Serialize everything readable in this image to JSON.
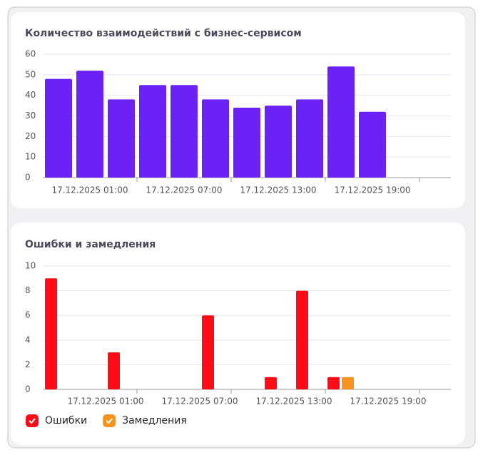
{
  "chart_data": [
    {
      "type": "bar",
      "title": "Количество взаимодействий с бизнес-сервисом",
      "categories": [
        null,
        "17.12.2025 01:00",
        null,
        null,
        "17.12.2025 07:00",
        null,
        null,
        "17.12.2025 13:00",
        null,
        null,
        "17.12.2025 19:00",
        null,
        null
      ],
      "series": [
        {
          "name": null,
          "color": "#6a22f5",
          "values": [
            48,
            52,
            38,
            45,
            45,
            38,
            34,
            35,
            38,
            54,
            32,
            0,
            0
          ]
        }
      ],
      "ylim": [
        0,
        60
      ],
      "yticks": [
        0,
        10,
        20,
        30,
        40,
        50,
        60
      ],
      "grid": true
    },
    {
      "type": "bar",
      "title": "Ошибки и замедления",
      "categories": [
        null,
        null,
        "17.12.2025 01:00",
        null,
        null,
        "17.12.2025 07:00",
        null,
        null,
        "17.12.2025 13:00",
        null,
        null,
        "17.12.2025 19:00",
        null
      ],
      "series": [
        {
          "name": "Ошибки",
          "color": "#ff0a16",
          "values": [
            9,
            0,
            3,
            0,
            0,
            6,
            0,
            1,
            8,
            1,
            0,
            0,
            0
          ]
        },
        {
          "name": "Замедления",
          "color": "#f7931e",
          "values": [
            0,
            0,
            0,
            0,
            0,
            0,
            0,
            0,
            0,
            1,
            0,
            0,
            0
          ]
        }
      ],
      "ylim": [
        0,
        10
      ],
      "yticks": [
        0,
        2,
        4,
        6,
        8,
        10
      ],
      "grid": true,
      "legend": "bottom-left"
    }
  ]
}
